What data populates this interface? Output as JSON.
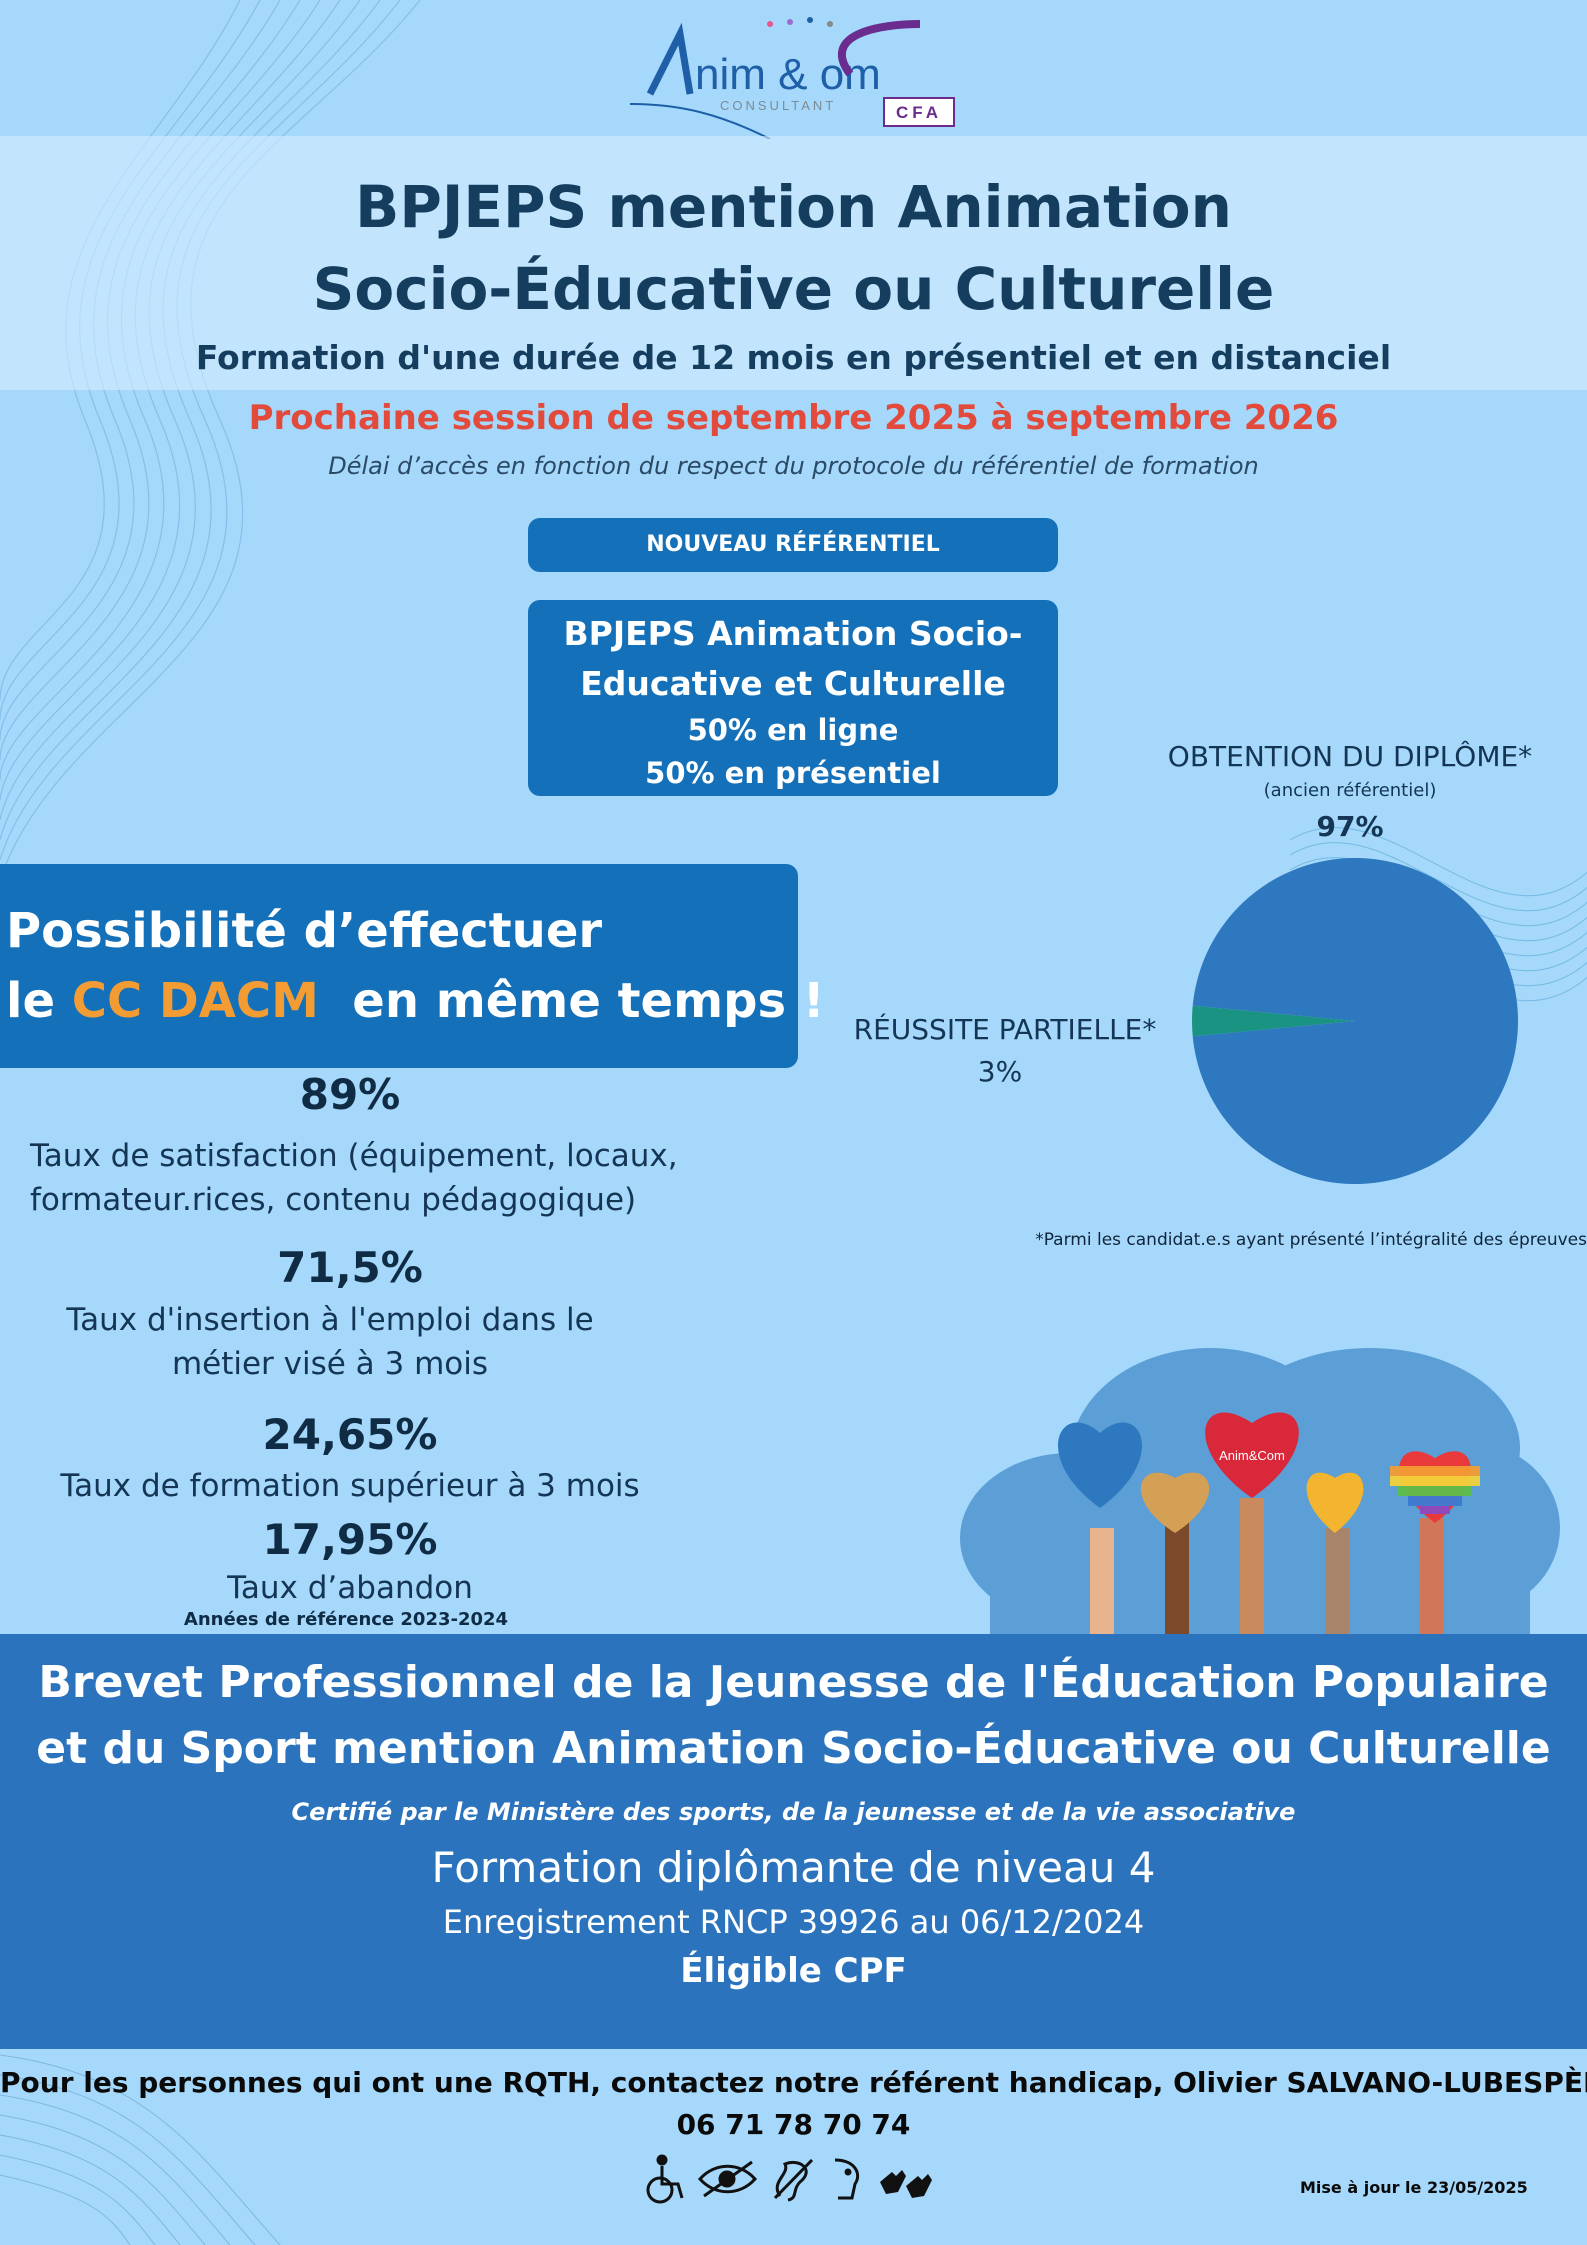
{
  "logo": {
    "brand_text": "nim & om",
    "sub_text": "CONSULTANT",
    "badge": "CFA"
  },
  "header": {
    "title_line1": "BPJEPS  mention Animation",
    "title_line2": "Socio-Éducative ou Culturelle",
    "duration": "Formation d'une durée de 12 mois en présentiel et en distanciel",
    "session": "Prochaine session de septembre 2025 à septembre 2026",
    "access_note": "Délai d’accès en fonction du respect du protocole du référentiel de formation"
  },
  "boxes": {
    "new_ref": "NOUVEAU RÉFÉRENTIEL",
    "formation_line1": "BPJEPS Animation Socio-",
    "formation_line2": "Educative et Culturelle",
    "formation_line3": "50% en ligne",
    "formation_line4": "50% en présentiel"
  },
  "cc_banner": {
    "line1": "Possibilité d’effectuer",
    "line2_prefix": "le ",
    "highlight": "CC DACM",
    "line2_suffix": "  en même temps !"
  },
  "stats": {
    "satisfaction_value": "89%",
    "satisfaction_label_1": "Taux de satisfaction (équipement, locaux,",
    "satisfaction_label_2": "formateur.rices, contenu pédagogique)",
    "insertion_value": "71,5%",
    "insertion_label_1": "Taux d'insertion à l'emploi dans le",
    "insertion_label_2": "métier visé à 3 mois",
    "further_training_value": "24,65%",
    "further_training_label": "Taux de formation supérieur à 3 mois",
    "dropout_value": "17,95%",
    "dropout_label": "Taux d’abandon",
    "reference_years": "Années de référence 2023-2024"
  },
  "chart_data": {
    "type": "pie",
    "title": "OBTENTION DU DIPLÔME*",
    "subtitle": "(ancien référentiel)",
    "slices": [
      {
        "label": "OBTENTION DU DIPLÔME*",
        "value": 97,
        "display": "97%",
        "color": "#2d78be"
      },
      {
        "label": "RÉUSSITE PARTIELLE*",
        "value": 3,
        "display": "3%",
        "color": "#1a9383"
      }
    ],
    "footnote": "*Parmi les candidat.e.s ayant présenté l’intégralité des épreuves"
  },
  "bottom": {
    "brevet_line1": "Brevet Professionnel de la Jeunesse de l'Éducation Populaire",
    "brevet_line2": "et du Sport mention Animation Socio-Éducative ou Culturelle",
    "certified": "Certifié par le Ministère des sports, de la jeunesse et de la vie associative",
    "level": "Formation diplômante de niveau 4",
    "rncp": "Enregistrement RNCP 39926 au 06/12/2024",
    "cpf": "Éligible CPF"
  },
  "footer": {
    "rqth_line1": "Pour les personnes qui ont une RQTH, contactez notre référent handicap, Olivier SALVANO-LUBESPÈRE",
    "rqth_line2": "06 71 78 70 74",
    "updated": "Mise à jour le 23/05/2025"
  },
  "illustration": {
    "heart_logo": "Anim&Com"
  },
  "colors": {
    "background": "#a5d8fb",
    "primary_blue": "#1470b8",
    "band_blue": "#2b74bd",
    "accent_orange": "#f39c34",
    "accent_red": "#e24a3b",
    "dark_text": "#143d5e"
  }
}
